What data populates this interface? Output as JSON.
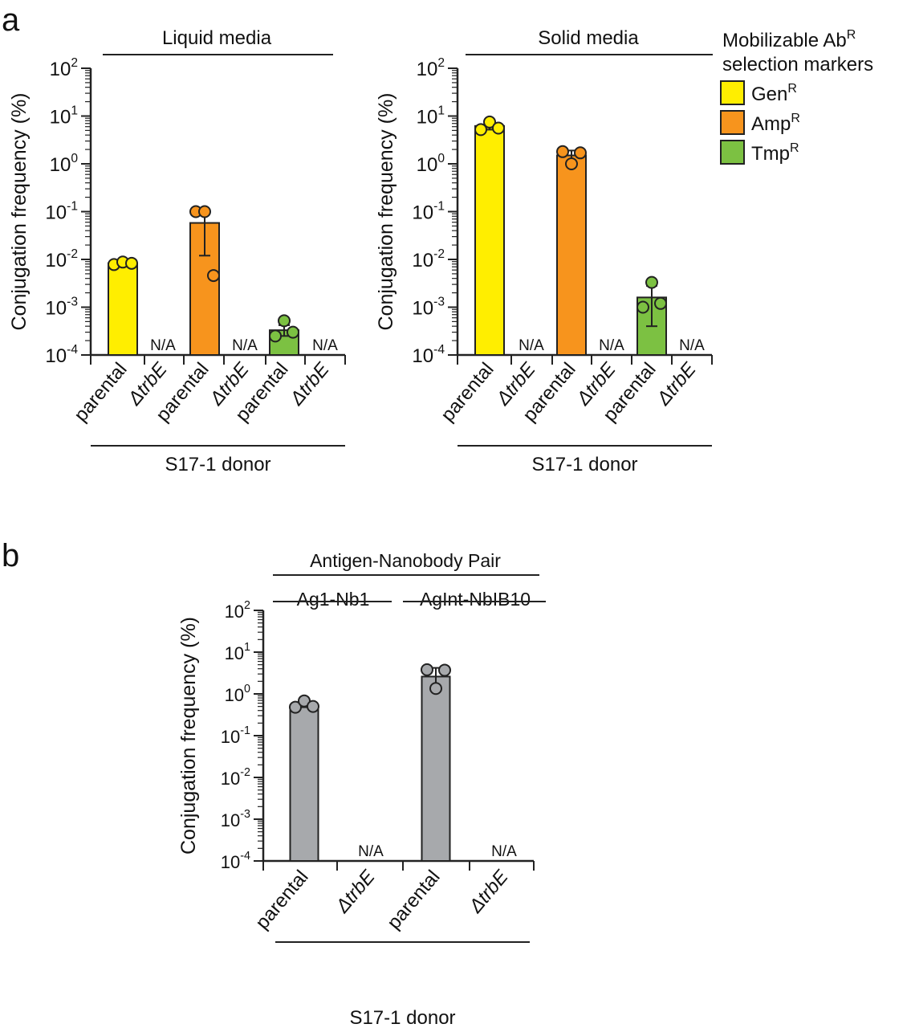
{
  "chart_data": [
    {
      "panel_letter": "a",
      "type": "bar",
      "title": "Liquid media",
      "ylabel": "Conjugation frequency (%)",
      "yscale": "log",
      "ylim": [
        0.0001,
        100
      ],
      "yticks": [
        0.0001,
        0.001,
        0.01,
        0.1,
        1,
        10,
        100
      ],
      "group_label": "S17-1 donor",
      "categories": [
        "parental",
        "ΔtrbE",
        "parental",
        "ΔtrbE",
        "parental",
        "ΔtrbE"
      ],
      "bars": [
        {
          "marker": "GenR",
          "color": "#ffee00",
          "value": 0.0083,
          "err": [
            0.0078,
            0.0088
          ],
          "points": [
            0.0078,
            0.0088,
            0.0083
          ]
        },
        {
          "marker": "GenR",
          "na": "N/A"
        },
        {
          "marker": "AmpR",
          "color": "#f7941d",
          "value": 0.058,
          "err": [
            0.012,
            0.105
          ],
          "points": [
            0.1,
            0.1,
            0.0046
          ]
        },
        {
          "marker": "AmpR",
          "na": "N/A"
        },
        {
          "marker": "TmpR",
          "color": "#7cc142",
          "value": 0.00033,
          "err": [
            0.00025,
            0.00042
          ],
          "points": [
            0.00025,
            0.00052,
            0.0003
          ]
        },
        {
          "marker": "TmpR",
          "na": "N/A"
        }
      ]
    },
    {
      "type": "bar",
      "title": "Solid media",
      "ylabel": "Conjugation frequency (%)",
      "yscale": "log",
      "ylim": [
        0.0001,
        100
      ],
      "yticks": [
        0.0001,
        0.001,
        0.01,
        0.1,
        1,
        10,
        100
      ],
      "group_label": "S17-1 donor",
      "categories": [
        "parental",
        "ΔtrbE",
        "parental",
        "ΔtrbE",
        "parental",
        "ΔtrbE"
      ],
      "bars": [
        {
          "marker": "GenR",
          "color": "#ffee00",
          "value": 6.2,
          "err": [
            5.2,
            7.2
          ],
          "points": [
            5.2,
            7.5,
            5.6
          ]
        },
        {
          "marker": "GenR",
          "na": "N/A"
        },
        {
          "marker": "AmpR",
          "color": "#f7941d",
          "value": 1.5,
          "err": [
            1.1,
            1.9
          ],
          "points": [
            1.8,
            1.0,
            1.7
          ]
        },
        {
          "marker": "AmpR",
          "na": "N/A"
        },
        {
          "marker": "TmpR",
          "color": "#7cc142",
          "value": 0.0016,
          "err": [
            0.0004,
            0.0028
          ],
          "points": [
            0.001,
            0.0033,
            0.0012
          ]
        },
        {
          "marker": "TmpR",
          "na": "N/A"
        }
      ]
    },
    {
      "panel_letter": "b",
      "type": "bar",
      "ylabel": "Conjugation frequency (%)",
      "yscale": "log",
      "ylim": [
        0.0001,
        100
      ],
      "yticks": [
        0.0001,
        0.001,
        0.01,
        0.1,
        1,
        10,
        100
      ],
      "header": "Antigen-Nanobody Pair",
      "subgroups": [
        "Ag1-Nb1",
        "AgInt-NbIB10"
      ],
      "group_label": "S17-1 donor",
      "categories": [
        "parental",
        "ΔtrbE",
        "parental",
        "ΔtrbE"
      ],
      "bars": [
        {
          "color": "#a7a9ac",
          "value": 0.54,
          "err": [
            0.48,
            0.62
          ],
          "points": [
            0.48,
            0.68,
            0.5
          ]
        },
        {
          "na": "N/A"
        },
        {
          "color": "#a7a9ac",
          "value": 2.6,
          "err": [
            1.3,
            4.2
          ],
          "points": [
            3.8,
            1.35,
            3.7
          ]
        },
        {
          "na": "N/A"
        }
      ]
    }
  ],
  "legend": {
    "title_line1": "Mobilizable Ab",
    "title_line1_sup": "R",
    "title_line2": "selection markers",
    "entries": [
      {
        "name": "Gen",
        "sup": "R",
        "color": "#ffee00"
      },
      {
        "name": "Amp",
        "sup": "R",
        "color": "#f7941d"
      },
      {
        "name": "Tmp",
        "sup": "R",
        "color": "#7cc142"
      }
    ]
  }
}
